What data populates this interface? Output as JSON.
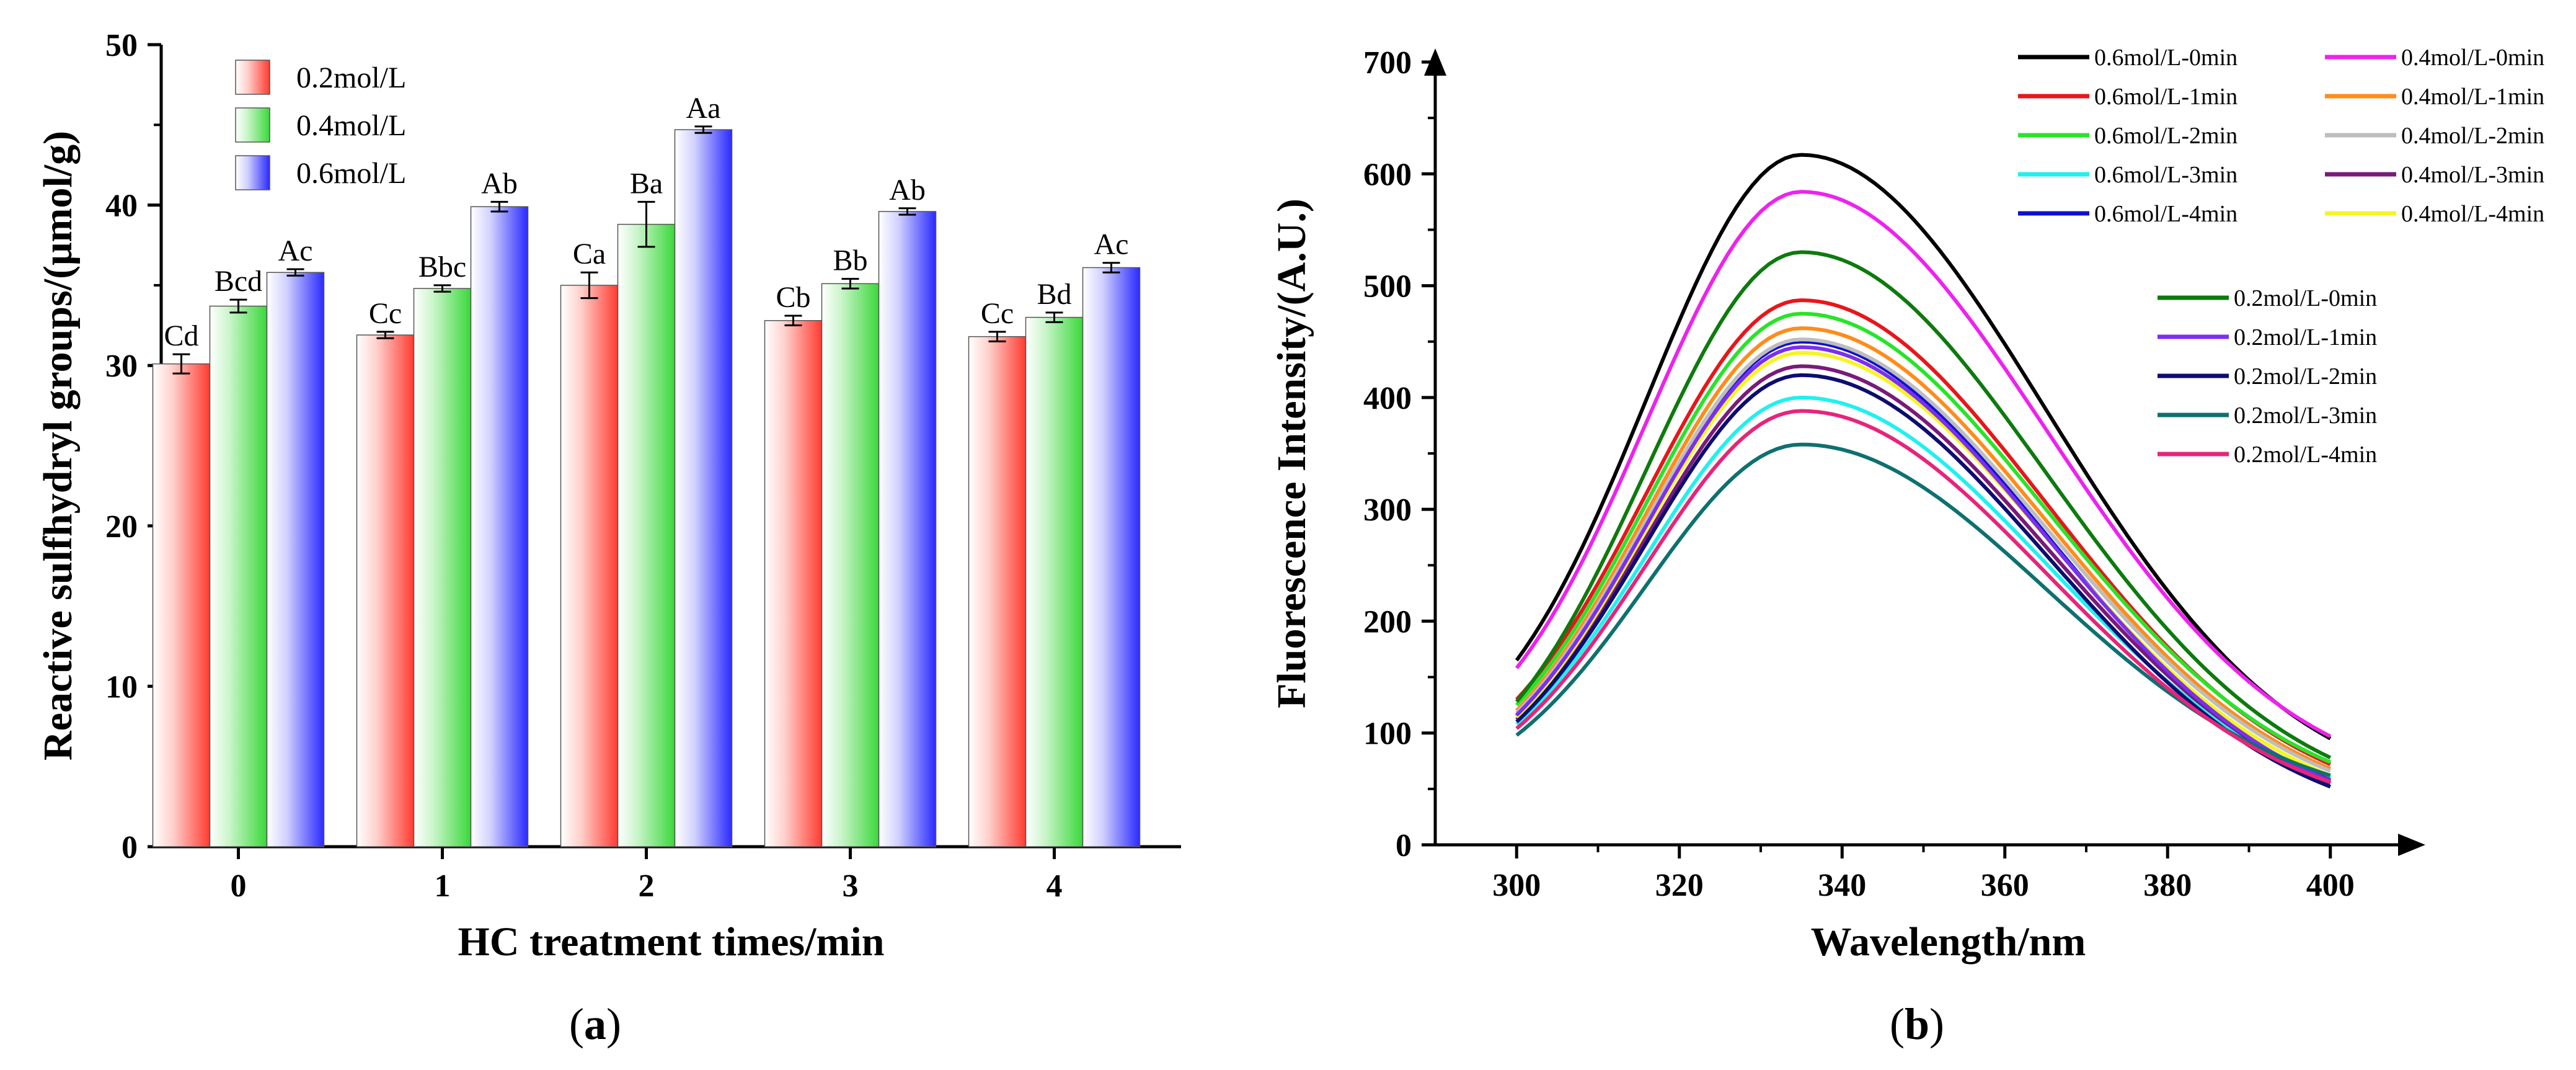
{
  "chart_data": [
    {
      "type": "bar",
      "panel_label": "a",
      "xlabel": "HC treatment times/min",
      "ylabel": "Reactive sulfhydryl groups/(μmol/g)",
      "ylim": [
        0,
        50
      ],
      "yticks": [
        0,
        10,
        20,
        30,
        40,
        50
      ],
      "categories": [
        "0",
        "1",
        "2",
        "3",
        "4"
      ],
      "legend_position": "top-left",
      "series": [
        {
          "name": "0.2mol/L",
          "color": "#ff3b30",
          "values": [
            30.1,
            31.9,
            35.0,
            32.8,
            31.8
          ],
          "errors": [
            0.6,
            0.2,
            0.8,
            0.3,
            0.3
          ],
          "labels": [
            "Cd",
            "Cc",
            "Ca",
            "Cb",
            "Cc"
          ]
        },
        {
          "name": "0.4mol/L",
          "color": "#3ad83a",
          "values": [
            33.7,
            34.8,
            38.8,
            35.1,
            33.0
          ],
          "errors": [
            0.4,
            0.2,
            1.4,
            0.3,
            0.3
          ],
          "labels": [
            "Bcd",
            "Bbc",
            "Ba",
            "Bb",
            "Bd"
          ]
        },
        {
          "name": "0.6mol/L",
          "color": "#2a2aff",
          "values": [
            35.8,
            39.9,
            44.7,
            39.6,
            36.1
          ],
          "errors": [
            0.2,
            0.3,
            0.2,
            0.2,
            0.3
          ],
          "labels": [
            "Ac",
            "Ab",
            "Aa",
            "Ab",
            "Ac"
          ]
        }
      ]
    },
    {
      "type": "line",
      "panel_label": "b",
      "xlabel": "Wavelength/nm",
      "ylabel": "Fluorescence Intensity/(A.U.)",
      "xlim": [
        290,
        410
      ],
      "ylim": [
        0,
        700
      ],
      "xticks": [
        300,
        320,
        340,
        360,
        380,
        400
      ],
      "yticks": [
        0,
        100,
        200,
        300,
        400,
        500,
        600,
        700
      ],
      "legend_position": "top-right",
      "x": [
        300,
        305,
        310,
        315,
        320,
        325,
        330,
        335,
        340,
        345,
        350,
        355,
        360,
        365,
        370,
        375,
        380,
        385,
        390,
        395,
        400
      ],
      "series": [
        {
          "name": "0.6mol/L-0min",
          "color": "#000000",
          "peak": 617,
          "start": 165,
          "end": 95
        },
        {
          "name": "0.6mol/L-1min",
          "color": "#e8161b",
          "peak": 487,
          "start": 130,
          "end": 72
        },
        {
          "name": "0.6mol/L-2min",
          "color": "#28e428",
          "peak": 475,
          "start": 125,
          "end": 74
        },
        {
          "name": "0.6mol/L-3min",
          "color": "#20f0f0",
          "peak": 400,
          "start": 108,
          "end": 60
        },
        {
          "name": "0.6mol/L-4min",
          "color": "#1010d0",
          "peak": 450,
          "start": 115,
          "end": 55
        },
        {
          "name": "0.4mol/L-0min",
          "color": "#ee22ee",
          "peak": 584,
          "start": 158,
          "end": 97
        },
        {
          "name": "0.4mol/L-1min",
          "color": "#ff8c1a",
          "peak": 462,
          "start": 120,
          "end": 68
        },
        {
          "name": "0.4mol/L-2min",
          "color": "#bdbdbd",
          "peak": 452,
          "start": 118,
          "end": 66
        },
        {
          "name": "0.4mol/L-3min",
          "color": "#7a1a7a",
          "peak": 428,
          "start": 112,
          "end": 58
        },
        {
          "name": "0.4mol/L-4min",
          "color": "#f5f520",
          "peak": 440,
          "start": 114,
          "end": 62
        },
        {
          "name": "0.2mol/L-0min",
          "color": "#0d7a0d",
          "peak": 530,
          "start": 128,
          "end": 78
        },
        {
          "name": "0.2mol/L-1min",
          "color": "#7b2ff0",
          "peak": 445,
          "start": 116,
          "end": 57
        },
        {
          "name": "0.2mol/L-2min",
          "color": "#0d0d70",
          "peak": 420,
          "start": 110,
          "end": 52
        },
        {
          "name": "0.2mol/L-3min",
          "color": "#0e7070",
          "peak": 358,
          "start": 98,
          "end": 62
        },
        {
          "name": "0.2mol/L-4min",
          "color": "#e8247a",
          "peak": 388,
          "start": 104,
          "end": 56
        }
      ]
    }
  ]
}
